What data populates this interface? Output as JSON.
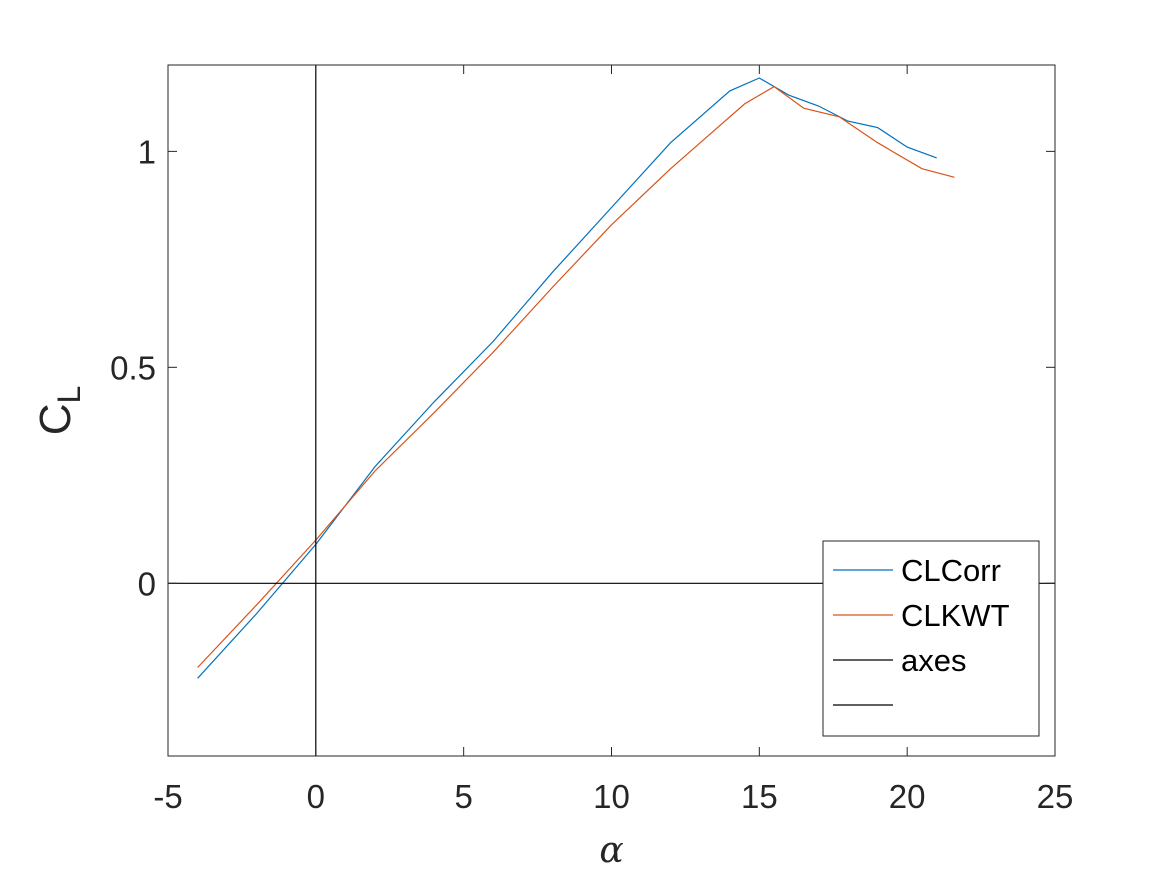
{
  "chart_data": {
    "type": "line",
    "xlabel": "α",
    "ylabel": {
      "main": "C",
      "sub": "L"
    },
    "xlim": [
      -5,
      25
    ],
    "ylim": [
      -0.4,
      1.2
    ],
    "xticks": [
      -5,
      0,
      5,
      10,
      15,
      20,
      25
    ],
    "yticks": [
      0,
      0.5,
      1
    ],
    "xtick_labels": [
      "-5",
      "0",
      "5",
      "10",
      "15",
      "20",
      "25"
    ],
    "ytick_labels": [
      "0",
      "0.5",
      "1"
    ],
    "grid": false,
    "legend_position": "bottom-right",
    "series": [
      {
        "name": "CLCorr",
        "color": "#0072BD",
        "x": [
          -4,
          -2,
          0,
          2,
          4,
          6,
          8,
          10,
          12,
          14,
          15,
          16,
          17,
          18,
          19,
          20,
          21
        ],
        "y": [
          -0.22,
          -0.07,
          0.09,
          0.27,
          0.42,
          0.56,
          0.72,
          0.87,
          1.02,
          1.14,
          1.17,
          1.13,
          1.105,
          1.07,
          1.055,
          1.01,
          0.985
        ]
      },
      {
        "name": "CLKWT",
        "color": "#D95319",
        "x": [
          -4,
          -2,
          0,
          2,
          4,
          6,
          8,
          10,
          12,
          13.5,
          14.5,
          15.5,
          16.5,
          17.7,
          19,
          20.5,
          21.6
        ],
        "y": [
          -0.195,
          -0.05,
          0.1,
          0.26,
          0.395,
          0.535,
          0.685,
          0.83,
          0.96,
          1.05,
          1.11,
          1.15,
          1.1,
          1.08,
          1.02,
          0.96,
          0.94
        ]
      },
      {
        "name": "axes",
        "color": "#000000",
        "x": [
          -5,
          25
        ],
        "y": [
          0,
          0
        ]
      },
      {
        "name": "",
        "color": "#000000",
        "x": [
          0,
          0
        ],
        "y": [
          -0.4,
          1.2
        ]
      }
    ]
  }
}
